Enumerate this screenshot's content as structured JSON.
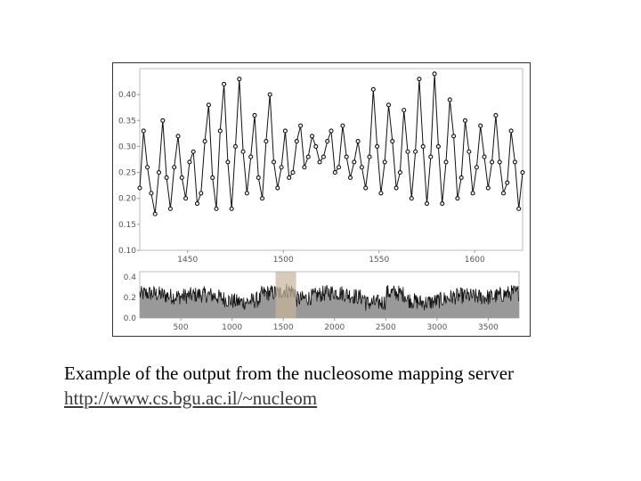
{
  "chart_data": [
    {
      "type": "line",
      "xlabel": "",
      "ylabel": "",
      "xlim": [
        1425,
        1625
      ],
      "ylim": [
        0.1,
        0.45
      ],
      "xticks": [
        1450,
        1500,
        1550,
        1600
      ],
      "xtick_labels": [
        "1450",
        "1500",
        "1550",
        "1600"
      ],
      "yticks": [
        0.1,
        0.15,
        0.2,
        0.25,
        0.3,
        0.35,
        0.4
      ],
      "ytick_labels": [
        "0.10",
        "0.15",
        "0.20",
        "0.25",
        "0.30",
        "0.35",
        "0.40"
      ],
      "grid": false,
      "markers": true,
      "series": [
        {
          "x": [
            1425,
            1427,
            1429,
            1431,
            1433,
            1435,
            1437,
            1439,
            1441,
            1443,
            1445,
            1447,
            1449,
            1451,
            1453,
            1455,
            1457,
            1459,
            1461,
            1463,
            1465,
            1467,
            1469,
            1471,
            1473,
            1475,
            1477,
            1479,
            1481,
            1483,
            1485,
            1487,
            1489,
            1491,
            1493,
            1495,
            1497,
            1499,
            1501,
            1503,
            1505,
            1507,
            1509,
            1511,
            1513,
            1515,
            1517,
            1519,
            1521,
            1523,
            1525,
            1527,
            1529,
            1531,
            1533,
            1535,
            1537,
            1539,
            1541,
            1543,
            1545,
            1547,
            1549,
            1551,
            1553,
            1555,
            1557,
            1559,
            1561,
            1563,
            1565,
            1567,
            1569,
            1571,
            1573,
            1575,
            1577,
            1579,
            1581,
            1583,
            1585,
            1587,
            1589,
            1591,
            1593,
            1595,
            1597,
            1599,
            1601,
            1603,
            1605,
            1607,
            1609,
            1611,
            1613,
            1615,
            1617,
            1619,
            1621,
            1623,
            1625
          ],
          "values": [
            0.22,
            0.33,
            0.26,
            0.21,
            0.17,
            0.25,
            0.35,
            0.24,
            0.18,
            0.26,
            0.32,
            0.24,
            0.2,
            0.27,
            0.29,
            0.19,
            0.21,
            0.31,
            0.38,
            0.24,
            0.18,
            0.33,
            0.42,
            0.27,
            0.18,
            0.3,
            0.43,
            0.29,
            0.21,
            0.28,
            0.36,
            0.24,
            0.2,
            0.31,
            0.4,
            0.27,
            0.22,
            0.26,
            0.33,
            0.24,
            0.25,
            0.31,
            0.34,
            0.26,
            0.28,
            0.32,
            0.3,
            0.27,
            0.28,
            0.31,
            0.33,
            0.25,
            0.26,
            0.34,
            0.28,
            0.24,
            0.27,
            0.31,
            0.26,
            0.22,
            0.28,
            0.41,
            0.3,
            0.21,
            0.27,
            0.38,
            0.31,
            0.22,
            0.25,
            0.37,
            0.29,
            0.2,
            0.29,
            0.43,
            0.3,
            0.19,
            0.28,
            0.44,
            0.3,
            0.19,
            0.27,
            0.39,
            0.32,
            0.2,
            0.24,
            0.35,
            0.29,
            0.21,
            0.26,
            0.34,
            0.28,
            0.22,
            0.27,
            0.36,
            0.27,
            0.21,
            0.23,
            0.33,
            0.27,
            0.18,
            0.25
          ]
        }
      ]
    },
    {
      "type": "area",
      "xlabel": "",
      "ylabel": "",
      "xlim": [
        100,
        3800
      ],
      "ylim": [
        0,
        0.45
      ],
      "xticks": [
        500,
        1000,
        1500,
        2000,
        2500,
        3000,
        3500
      ],
      "xtick_labels": [
        "500",
        "1000",
        "1500",
        "2000",
        "2500",
        "3000",
        "3500"
      ],
      "yticks": [
        0.0,
        0.2,
        0.4
      ],
      "ytick_labels": [
        "0.0",
        "0.2",
        "0.4"
      ],
      "grid": false,
      "highlight_range": [
        1425,
        1625
      ],
      "fill_color": "#999999",
      "line_color": "#111111",
      "highlight_color": "#c8b39a"
    }
  ],
  "caption": {
    "text": "Example of the output from the nucleosome mapping server",
    "link": "http://www.cs.bgu.ac.il/~nucleom"
  }
}
